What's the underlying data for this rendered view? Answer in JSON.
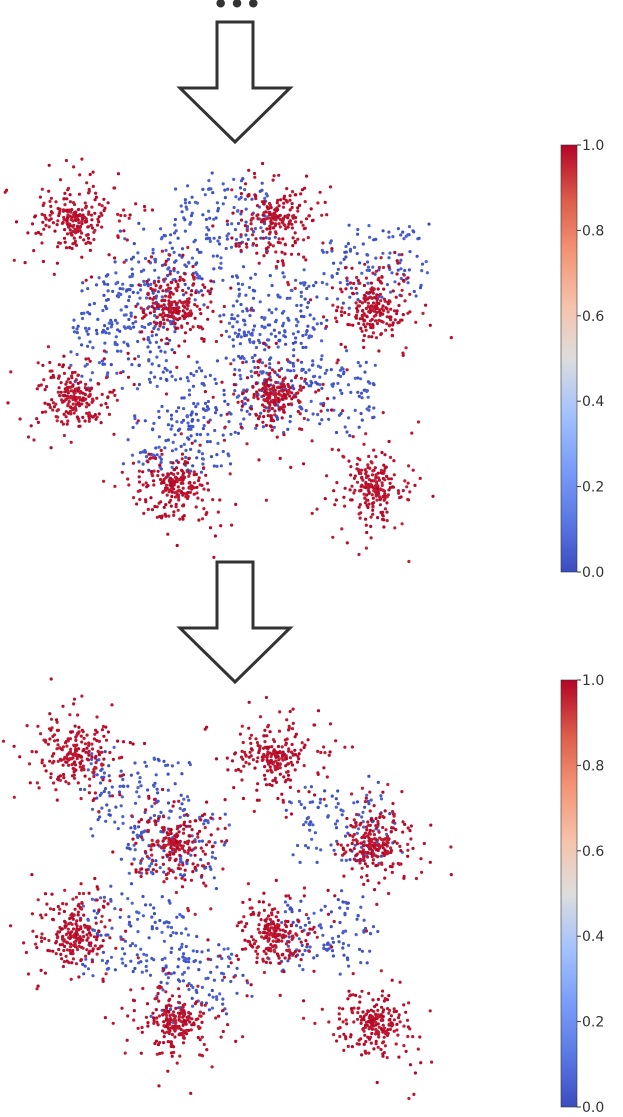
{
  "header": {
    "ellipsis": "•••"
  },
  "colors": {
    "low": "#3b4cc0",
    "mid": "#dddddd",
    "high": "#b40426",
    "arrow_stroke": "#333333",
    "text": "#333333"
  },
  "icons": {
    "arrow_1": "down-arrow-icon",
    "arrow_2": "down-arrow-icon"
  },
  "chart_data": [
    {
      "type": "scatter",
      "title": "",
      "xlabel": "",
      "ylabel": "",
      "axes_visible": false,
      "grid": false,
      "colorbar": {
        "colormap": "coolwarm",
        "range": [
          0.0,
          1.0
        ],
        "ticks": [
          "0.0",
          "0.2",
          "0.4",
          "0.6",
          "0.8",
          "1.0"
        ]
      },
      "clusters": [
        {
          "x": 0,
          "y": 3,
          "value": 1.0
        },
        {
          "x": 2,
          "y": 3,
          "value": 1.0
        },
        {
          "x": 1,
          "y": 2,
          "value": 1.0
        },
        {
          "x": 3,
          "y": 2,
          "value": 1.0
        },
        {
          "x": 0,
          "y": 1,
          "value": 1.0
        },
        {
          "x": 2,
          "y": 1,
          "value": 1.0
        },
        {
          "x": 1,
          "y": 0,
          "value": 1.0
        },
        {
          "x": 3,
          "y": 0,
          "value": 1.0
        }
      ],
      "bridge_regions": [
        {
          "x": 1.0,
          "y": 2.5,
          "value": 0.0
        },
        {
          "x": 1.5,
          "y": 3.0,
          "value": 0.0
        },
        {
          "x": 3.0,
          "y": 2.5,
          "value": 0.0
        },
        {
          "x": 0.5,
          "y": 2.0,
          "value": 0.0
        },
        {
          "x": 2.0,
          "y": 2.0,
          "value": 0.0
        },
        {
          "x": 0.5,
          "y": 1.5,
          "value": 0.0
        },
        {
          "x": 1.5,
          "y": 1.0,
          "value": 0.0
        },
        {
          "x": 2.5,
          "y": 1.0,
          "value": 0.0
        },
        {
          "x": 2.0,
          "y": 1.5,
          "value": 0.0
        },
        {
          "x": 1.0,
          "y": 0.5,
          "value": 0.0
        }
      ]
    },
    {
      "type": "scatter",
      "title": "",
      "xlabel": "",
      "ylabel": "",
      "axes_visible": false,
      "grid": false,
      "colorbar": {
        "colormap": "coolwarm",
        "range": [
          0.0,
          1.0
        ],
        "ticks": [
          "0.0",
          "0.2",
          "0.4",
          "0.6",
          "0.8",
          "1.0"
        ]
      },
      "clusters": [
        {
          "x": 0,
          "y": 3,
          "value": 1.0
        },
        {
          "x": 2,
          "y": 3,
          "value": 1.0
        },
        {
          "x": 1,
          "y": 2,
          "value": 1.0
        },
        {
          "x": 3,
          "y": 2,
          "value": 1.0
        },
        {
          "x": 0,
          "y": 1,
          "value": 1.0
        },
        {
          "x": 2,
          "y": 1,
          "value": 1.0
        },
        {
          "x": 1,
          "y": 0,
          "value": 1.0
        },
        {
          "x": 3,
          "y": 0,
          "value": 1.0
        }
      ],
      "bridge_regions": [
        {
          "x": 1.0,
          "y": 2.0,
          "value": 0.0
        },
        {
          "x": 2.7,
          "y": 2.2,
          "value": 0.0
        },
        {
          "x": 0.6,
          "y": 1.0,
          "value": 0.0
        },
        {
          "x": 2.5,
          "y": 1.0,
          "value": 0.0
        },
        {
          "x": 1.2,
          "y": 0.5,
          "value": 0.0
        },
        {
          "x": 0.6,
          "y": 2.6,
          "value": 0.0
        }
      ]
    }
  ]
}
